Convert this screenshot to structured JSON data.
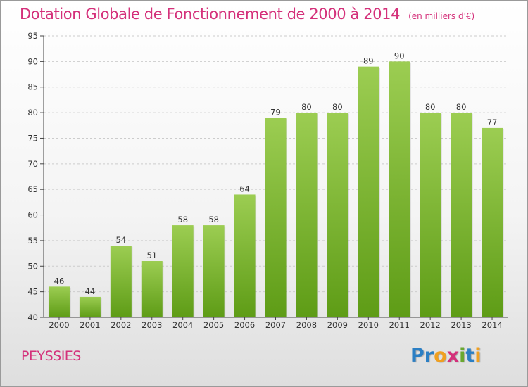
{
  "header": {
    "title": "Dotation Globale de Fonctionnement de 2000 à 2014",
    "unit": "(en milliers d'€)"
  },
  "footer": {
    "commune": "PEYSSIES",
    "logo": {
      "text": "Proxiti",
      "letters": [
        {
          "char": "P",
          "color": "#2b7fc4"
        },
        {
          "char": "r",
          "color": "#2b7fc4"
        },
        {
          "char": "o",
          "color": "#f0a020"
        },
        {
          "char": "x",
          "color": "#d4307a"
        },
        {
          "char": "i",
          "color": "#6aa830"
        },
        {
          "char": "t",
          "color": "#2b7fc4"
        },
        {
          "char": "i",
          "color": "#f0a020"
        }
      ]
    }
  },
  "colors": {
    "title": "#d4307a",
    "bar_top": "#9ccd52",
    "bar_bottom": "#5e9c16",
    "grid": "#cccccc",
    "axis": "#444444"
  },
  "chart_data": {
    "type": "bar",
    "title": "Dotation Globale de Fonctionnement de 2000 à 2014",
    "subtitle": "(en milliers d'€)",
    "xlabel": "",
    "ylabel": "",
    "categories": [
      "2000",
      "2001",
      "2002",
      "2003",
      "2004",
      "2005",
      "2006",
      "2007",
      "2008",
      "2009",
      "2010",
      "2011",
      "2012",
      "2013",
      "2014"
    ],
    "values": [
      46,
      44,
      54,
      51,
      58,
      58,
      64,
      79,
      80,
      80,
      89,
      90,
      80,
      80,
      77
    ],
    "data_labels": [
      "46",
      "44",
      "54",
      "51",
      "58",
      "58",
      "64",
      "79",
      "80",
      "80",
      "89",
      "90",
      "80",
      "80",
      "77"
    ],
    "ylim": [
      40,
      95
    ],
    "yticks": [
      40,
      45,
      50,
      55,
      60,
      65,
      70,
      75,
      80,
      85,
      90,
      95
    ],
    "grid": true,
    "grid_style": "dashed-horizontal",
    "legend": "none"
  }
}
